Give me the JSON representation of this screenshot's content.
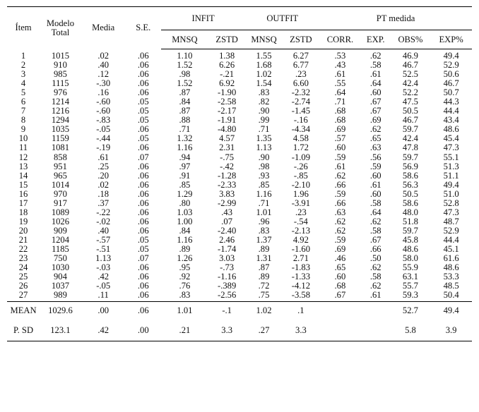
{
  "headers": {
    "item": "Ítem",
    "model_total": [
      "Modelo",
      "Total"
    ],
    "mean": "Media",
    "se": "S.E.",
    "infit": "INFIT",
    "outfit": "OUTFIT",
    "pt_measure": "PT medida",
    "sub": [
      "MNSQ",
      "ZSTD",
      "MNSQ",
      "ZSTD",
      "CORR.",
      "EXP.",
      "OBS%",
      "EXP%"
    ]
  },
  "rows": [
    [
      "1",
      "1015",
      ".02",
      ".06",
      "1.10",
      "1.38",
      "1.55",
      "6.27",
      ".53",
      ".62",
      "46.9",
      "49.4"
    ],
    [
      "2",
      "910",
      ".40",
      ".06",
      "1.52",
      "6.26",
      "1.68",
      "6.77",
      ".43",
      ".58",
      "46.7",
      "52.9"
    ],
    [
      "3",
      "985",
      ".12",
      ".06",
      ".98",
      "-.21",
      "1.02",
      ".23",
      ".61",
      ".61",
      "52.5",
      "50.6"
    ],
    [
      "4",
      "1115",
      "-.30",
      ".06",
      "1.52",
      "6.92",
      "1.54",
      "6.60",
      ".55",
      ".64",
      "42.4",
      "46.7"
    ],
    [
      "5",
      "976",
      ".16",
      ".06",
      ".87",
      "-1.90",
      ".83",
      "-2.32",
      ".64",
      ".60",
      "52.2",
      "50.7"
    ],
    [
      "6",
      "1214",
      "-.60",
      ".05",
      ".84",
      "-2.58",
      ".82",
      "-2.74",
      ".71",
      ".67",
      "47.5",
      "44.3"
    ],
    [
      "7",
      "1216",
      "-.60",
      ".05",
      ".87",
      "-2.17",
      ".90",
      "-1.45",
      ".68",
      ".67",
      "50.5",
      "44.4"
    ],
    [
      "8",
      "1294",
      "-.83",
      ".05",
      ".88",
      "-1.91",
      ".99",
      "-.16",
      ".68",
      ".69",
      "46.7",
      "43.4"
    ],
    [
      "9",
      "1035",
      "-.05",
      ".06",
      ".71",
      "-4.80",
      ".71",
      "-4.34",
      ".69",
      ".62",
      "59.7",
      "48.6"
    ],
    [
      "10",
      "1159",
      "-.44",
      ".05",
      "1.32",
      "4.57",
      "1.35",
      "4.58",
      ".57",
      ".65",
      "42.4",
      "45.4"
    ],
    [
      "11",
      "1081",
      "-.19",
      ".06",
      "1.16",
      "2.31",
      "1.13",
      "1.72",
      ".60",
      ".63",
      "47.8",
      "47.3"
    ],
    [
      "12",
      "858",
      ".61",
      ".07",
      ".94",
      "-.75",
      ".90",
      "-1.09",
      ".59",
      ".56",
      "59.7",
      "55.1"
    ],
    [
      "13",
      "951",
      ".25",
      ".06",
      ".97",
      "-.42",
      ".98",
      "-.26",
      ".61",
      ".59",
      "56.9",
      "51.3"
    ],
    [
      "14",
      "965",
      ".20",
      ".06",
      ".91",
      "-1.28",
      ".93",
      "-.85",
      ".62",
      ".60",
      "58.6",
      "51.1"
    ],
    [
      "15",
      "1014",
      ".02",
      ".06",
      ".85",
      "-2.33",
      ".85",
      "-2.10",
      ".66",
      ".61",
      "56.3",
      "49.4"
    ],
    [
      "16",
      "970",
      ".18",
      ".06",
      "1.29",
      "3.83",
      "1.16",
      "1.96",
      ".59",
      ".60",
      "50.5",
      "51.0"
    ],
    [
      "17",
      "917",
      ".37",
      ".06",
      ".80",
      "-2.99",
      ".71",
      "-3.91",
      ".66",
      ".58",
      "58.6",
      "52.8"
    ],
    [
      "18",
      "1089",
      "-.22",
      ".06",
      "1.03",
      ".43",
      "1.01",
      ".23",
      ".63",
      ".64",
      "48.0",
      "47.3"
    ],
    [
      "19",
      "1026",
      "-.02",
      ".06",
      "1.00",
      ".07",
      ".96",
      "-.54",
      ".62",
      ".62",
      "51.8",
      "48.7"
    ],
    [
      "20",
      "909",
      ".40",
      ".06",
      ".84",
      "-2.40",
      ".83",
      "-2.13",
      ".62",
      ".58",
      "59.7",
      "52.9"
    ],
    [
      "21",
      "1204",
      "-.57",
      ".05",
      "1.16",
      "2.46",
      "1.37",
      "4.92",
      ".59",
      ".67",
      "45.8",
      "44.4"
    ],
    [
      "22",
      "1185",
      "-.51",
      ".05",
      ".89",
      "-1.74",
      ".89",
      "-1.60",
      ".69",
      ".66",
      "48.6",
      "45.1"
    ],
    [
      "23",
      "750",
      "1.13",
      ".07",
      "1.26",
      "3.03",
      "1.31",
      "2.71",
      ".46",
      ".50",
      "58.0",
      "61.6"
    ],
    [
      "24",
      "1030",
      "-.03",
      ".06",
      ".95",
      "-.73",
      ".87",
      "-1.83",
      ".65",
      ".62",
      "55.9",
      "48.6"
    ],
    [
      "25",
      "904",
      ".42",
      ".06",
      ".92",
      "-1.16",
      ".89",
      "-1.33",
      ".60",
      ".58",
      "63.1",
      "53.3"
    ],
    [
      "26",
      "1037",
      "-.05",
      ".06",
      ".76",
      "-.389",
      ".72",
      "-4.12",
      ".68",
      ".62",
      "55.7",
      "48.5"
    ],
    [
      "27",
      "989",
      ".11",
      ".06",
      ".83",
      "-2.56",
      ".75",
      "-3.58",
      ".67",
      ".61",
      "59.3",
      "50.4"
    ]
  ],
  "summary": {
    "mean": [
      "MEAN",
      "1029.6",
      ".00",
      ".06",
      "1.01",
      "-.1",
      "1.02",
      ".1",
      "",
      "",
      "52.7",
      "49.4"
    ],
    "sd": [
      "P. SD",
      "123.1",
      ".42",
      ".00",
      ".21",
      "3.3",
      ".27",
      "3.3",
      "",
      "",
      "5.8",
      "3.9"
    ]
  }
}
